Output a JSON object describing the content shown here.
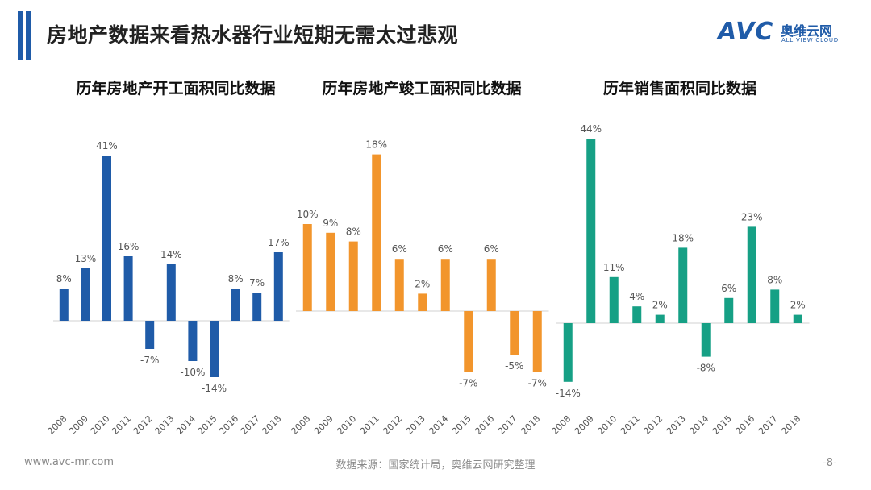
{
  "header": {
    "title": "房地产数据来看热水器行业短期无需太过悲观"
  },
  "brand": {
    "mark": "AVC",
    "name_cn": "奥维云网",
    "name_en": "ALL VIEW CLOUD"
  },
  "footer": {
    "website": "www.avc-mr.com",
    "source": "数据来源：国家统计局，奥维云网研究整理",
    "page": "-8-"
  },
  "chart_data": [
    {
      "type": "bar",
      "title": "历年房地产开工面积同比数据",
      "categories": [
        "2008",
        "2009",
        "2010",
        "2011",
        "2012",
        "2013",
        "2014",
        "2015",
        "2016",
        "2017",
        "2018"
      ],
      "values": [
        8,
        13,
        41,
        16,
        -7,
        14,
        -10,
        -14,
        8,
        7,
        17
      ],
      "labels": [
        "8%",
        "13%",
        "41%",
        "16%",
        "-7%",
        "14%",
        "-10%",
        "-14%",
        "8%",
        "7%",
        "17%"
      ],
      "color": "#1f5ba8"
    },
    {
      "type": "bar",
      "title": "历年房地产竣工面积同比数据",
      "categories": [
        "2008",
        "2009",
        "2010",
        "2011",
        "2012",
        "2013",
        "2014",
        "2015",
        "2016",
        "2017",
        "2018"
      ],
      "values": [
        10,
        9,
        8,
        18,
        6,
        2,
        6,
        -7,
        6,
        -5,
        -7
      ],
      "labels": [
        "10%",
        "9%",
        "8%",
        "18%",
        "6%",
        "2%",
        "6%",
        "-7%",
        "6%",
        "-5%",
        "-7%"
      ],
      "color": "#f2952c"
    },
    {
      "type": "bar",
      "title": "历年销售面积同比数据",
      "categories": [
        "2008",
        "2009",
        "2010",
        "2011",
        "2012",
        "2013",
        "2014",
        "2015",
        "2016",
        "2017",
        "2018"
      ],
      "values": [
        -14,
        44,
        11,
        4,
        2,
        18,
        -8,
        6,
        23,
        8,
        2
      ],
      "labels": [
        "-14%",
        "44%",
        "11%",
        "4%",
        "2%",
        "18%",
        "-8%",
        "6%",
        "23%",
        "8%",
        "2%"
      ],
      "color": "#16a085"
    }
  ]
}
